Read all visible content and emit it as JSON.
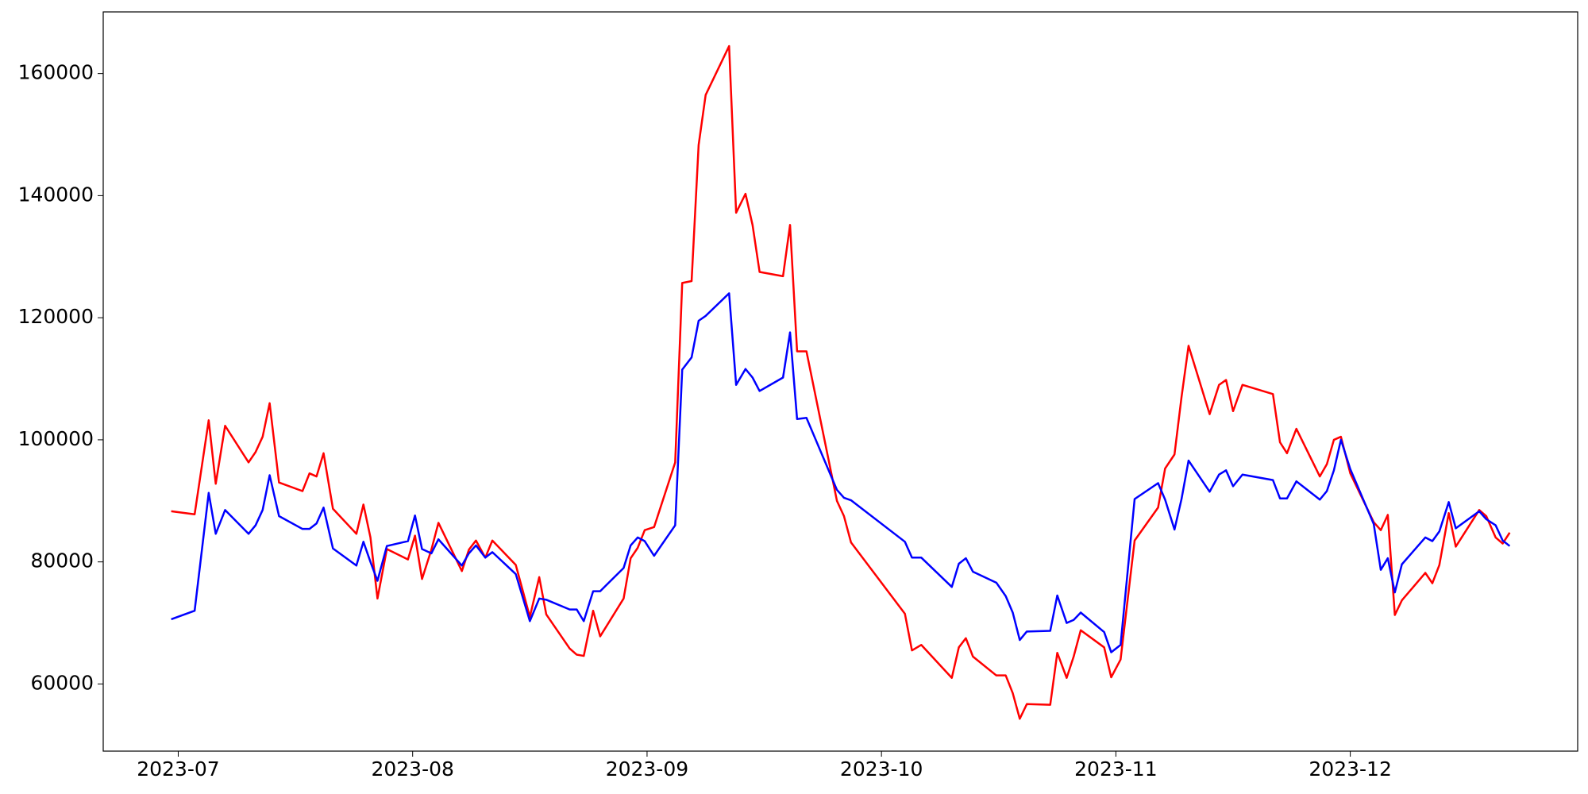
{
  "chart_data": {
    "type": "line",
    "x": [
      6.97,
      7.07,
      7.13,
      7.16,
      7.2,
      7.3,
      7.33,
      7.36,
      7.39,
      7.43,
      7.53,
      7.56,
      7.59,
      7.62,
      7.66,
      7.76,
      7.79,
      7.82,
      7.85,
      7.89,
      7.98,
      8.01,
      8.04,
      8.08,
      8.11,
      8.21,
      8.24,
      8.27,
      8.31,
      8.34,
      8.44,
      8.5,
      8.54,
      8.57,
      8.67,
      8.7,
      8.73,
      8.77,
      8.8,
      8.9,
      8.93,
      8.96,
      8.99,
      9.03,
      9.12,
      9.15,
      9.19,
      9.22,
      9.25,
      9.35,
      9.38,
      9.42,
      9.45,
      9.48,
      9.58,
      9.61,
      9.64,
      9.68,
      9.81,
      9.84,
      9.87,
      10.1,
      10.13,
      10.17,
      10.3,
      10.33,
      10.36,
      10.39,
      10.49,
      10.53,
      10.56,
      10.59,
      10.62,
      10.72,
      10.75,
      10.79,
      10.82,
      10.85,
      10.95,
      10.98,
      11.02,
      11.08,
      11.18,
      11.21,
      11.25,
      11.28,
      11.31,
      11.4,
      11.44,
      11.47,
      11.5,
      11.54,
      11.67,
      11.7,
      11.73,
      11.77,
      11.87,
      11.9,
      11.93,
      11.96,
      12.0,
      12.1,
      12.13,
      12.16,
      12.19,
      12.22,
      12.32,
      12.35,
      12.38,
      12.42,
      12.45,
      12.55,
      12.58,
      12.62,
      12.65,
      12.68
    ],
    "series": [
      {
        "color": "#ff0000",
        "values": [
          88300,
          87800,
          103200,
          92800,
          102300,
          96300,
          98000,
          100500,
          106000,
          93000,
          91600,
          94500,
          94000,
          97800,
          88700,
          84600,
          89400,
          84000,
          74000,
          82100,
          80400,
          84300,
          77200,
          82000,
          86400,
          78500,
          82000,
          83500,
          80700,
          83500,
          79500,
          71000,
          77500,
          71400,
          65800,
          64800,
          64600,
          72000,
          67800,
          74000,
          80600,
          82300,
          85200,
          85700,
          96300,
          125700,
          126000,
          148300,
          156500,
          164500,
          137200,
          140300,
          135200,
          127500,
          126800,
          135200,
          114500,
          114500,
          90000,
          87500,
          83200,
          71500,
          65500,
          66400,
          61000,
          66000,
          67500,
          64500,
          61400,
          61400,
          58500,
          54300,
          56700,
          56600,
          65100,
          61000,
          64500,
          68800,
          66000,
          61100,
          64000,
          83500,
          88900,
          95300,
          97600,
          107000,
          115400,
          104200,
          109000,
          109800,
          104700,
          109000,
          107500,
          99600,
          97800,
          101800,
          94000,
          96000,
          100000,
          100500,
          94500,
          86500,
          85200,
          87700,
          71300,
          73700,
          78200,
          76500,
          79500,
          88000,
          82500,
          88500,
          87500,
          84000,
          83000,
          84800
        ]
      },
      {
        "color": "#0000ff",
        "values": [
          70600,
          72000,
          91300,
          84600,
          88500,
          84600,
          86000,
          88500,
          94200,
          87500,
          85400,
          85400,
          86300,
          88900,
          82200,
          79400,
          83300,
          80000,
          76900,
          82600,
          83400,
          87600,
          82100,
          81400,
          83700,
          79400,
          81400,
          82700,
          80700,
          81600,
          78000,
          70300,
          74000,
          73800,
          72200,
          72200,
          70300,
          75200,
          75200,
          79000,
          82700,
          84000,
          83400,
          81000,
          86000,
          111500,
          113500,
          119500,
          120300,
          124000,
          109000,
          111600,
          110200,
          108000,
          110200,
          117600,
          103400,
          103600,
          91800,
          90500,
          90100,
          83300,
          80700,
          80700,
          75900,
          79700,
          80600,
          78400,
          76600,
          74400,
          71700,
          67200,
          68600,
          68700,
          74500,
          70000,
          70500,
          71700,
          68500,
          65200,
          66400,
          90300,
          92900,
          90200,
          85300,
          90300,
          96600,
          91500,
          94300,
          95000,
          92400,
          94300,
          93400,
          90400,
          90400,
          93200,
          90200,
          91600,
          95000,
          100000,
          95200,
          86200,
          78700,
          80600,
          75000,
          79600,
          84000,
          83400,
          85000,
          89800,
          85500,
          88300,
          87000,
          86000,
          83500,
          82600
        ]
      }
    ],
    "xlim": [
      6.68,
      12.97
    ],
    "xticks": [
      {
        "value": 7,
        "label": "2023-07"
      },
      {
        "value": 8,
        "label": "2023-08"
      },
      {
        "value": 9,
        "label": "2023-09"
      },
      {
        "value": 10,
        "label": "2023-10"
      },
      {
        "value": 11,
        "label": "2023-11"
      },
      {
        "value": 12,
        "label": "2023-12"
      }
    ],
    "ylim": [
      49000,
      170100
    ],
    "yticks": [
      60000,
      80000,
      100000,
      120000,
      140000,
      160000
    ],
    "grid": false
  }
}
